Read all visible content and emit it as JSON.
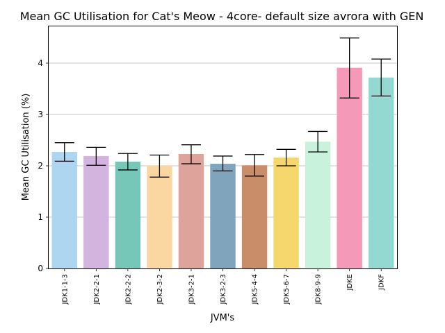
{
  "chart_data": {
    "type": "bar",
    "title": "Mean GC Utilisation for Cat's Meow - 4core- default size avrora with GEN",
    "xlabel": "JVM's",
    "ylabel": "Mean GC Utilisation (%)",
    "ylim": [
      0,
      4.73
    ],
    "yticks": [
      0,
      1,
      2,
      3,
      4
    ],
    "grid": "y-major",
    "categories": [
      "JDK1-1-3",
      "JDK2-2-1",
      "JDK2-2-2",
      "JDK2-3-2",
      "JDK3-2-1",
      "JDK3-2-3",
      "JDK5-4-4",
      "JDK5-6-7",
      "JDK8-9-9",
      "JDKE",
      "JDKF"
    ],
    "values": [
      2.27,
      2.19,
      2.08,
      2.0,
      2.23,
      2.04,
      2.01,
      2.16,
      2.47,
      3.91,
      3.72
    ],
    "error_low": [
      2.09,
      2.01,
      1.92,
      1.78,
      2.04,
      1.9,
      1.8,
      2.0,
      2.27,
      3.32,
      3.36
    ],
    "error_high": [
      2.45,
      2.36,
      2.24,
      2.21,
      2.41,
      2.19,
      2.22,
      2.32,
      2.67,
      4.49,
      4.08
    ],
    "colors": [
      "#aed6f1",
      "#d2b4de",
      "#76c7b7",
      "#fad7a0",
      "#dea49b",
      "#7fa4bc",
      "#c98e69",
      "#f5d76e",
      "#c9f2dc",
      "#f49ab8",
      "#94d9d1"
    ]
  }
}
